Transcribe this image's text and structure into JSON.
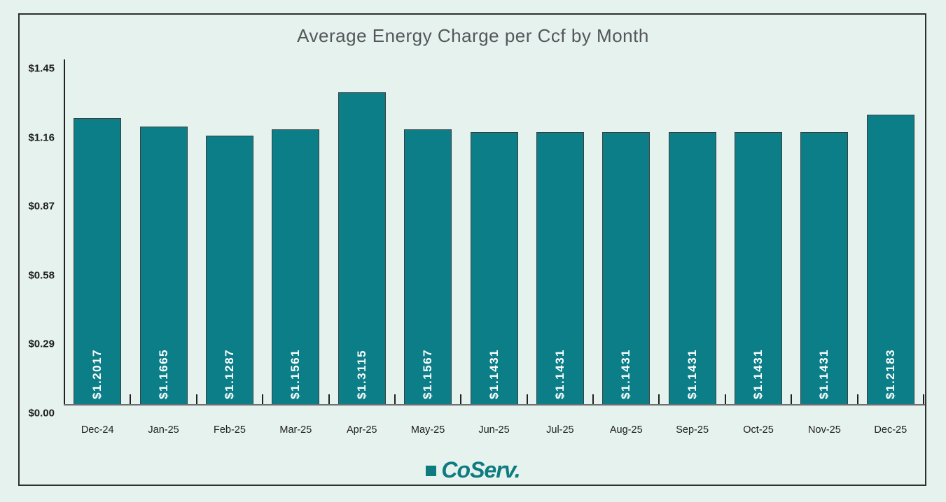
{
  "chart_data": {
    "type": "bar",
    "title": "Average Energy Charge per Ccf by Month",
    "categories": [
      "Dec-24",
      "Jan-25",
      "Feb-25",
      "Mar-25",
      "Apr-25",
      "May-25",
      "Jun-25",
      "Jul-25",
      "Aug-25",
      "Sep-25",
      "Oct-25",
      "Nov-25",
      "Dec-25"
    ],
    "values": [
      1.2017,
      1.1665,
      1.1287,
      1.1561,
      1.3115,
      1.1567,
      1.1431,
      1.1431,
      1.1431,
      1.1431,
      1.1431,
      1.1431,
      1.2183
    ],
    "bar_labels": [
      "$1.2017",
      "$1.1665",
      "$1.1287",
      "$1.1561",
      "$1.3115",
      "$1.1567",
      "$1.1431",
      "$1.1431",
      "$1.1431",
      "$1.1431",
      "$1.1431",
      "$1.1431",
      "$1.2183"
    ],
    "y_ticks": [
      "$1.45",
      "$1.16",
      "$0.87",
      "$0.58",
      "$0.29",
      "$0.00"
    ],
    "y_tick_values": [
      1.45,
      1.16,
      0.87,
      0.58,
      0.29,
      0.0
    ],
    "xlabel": "",
    "ylabel": "",
    "ylim": [
      0,
      1.45
    ],
    "grid": false,
    "legend": null,
    "colors": {
      "bar": "#0b7e88",
      "bar_label": "#ffffff",
      "background": "#e6f2ee",
      "axis": "#231f20",
      "title": "#54565b"
    }
  },
  "footer": {
    "logo_text": "CoServ.",
    "logo_square_icon": "teal-square",
    "logo_color": "#0e7b80"
  }
}
